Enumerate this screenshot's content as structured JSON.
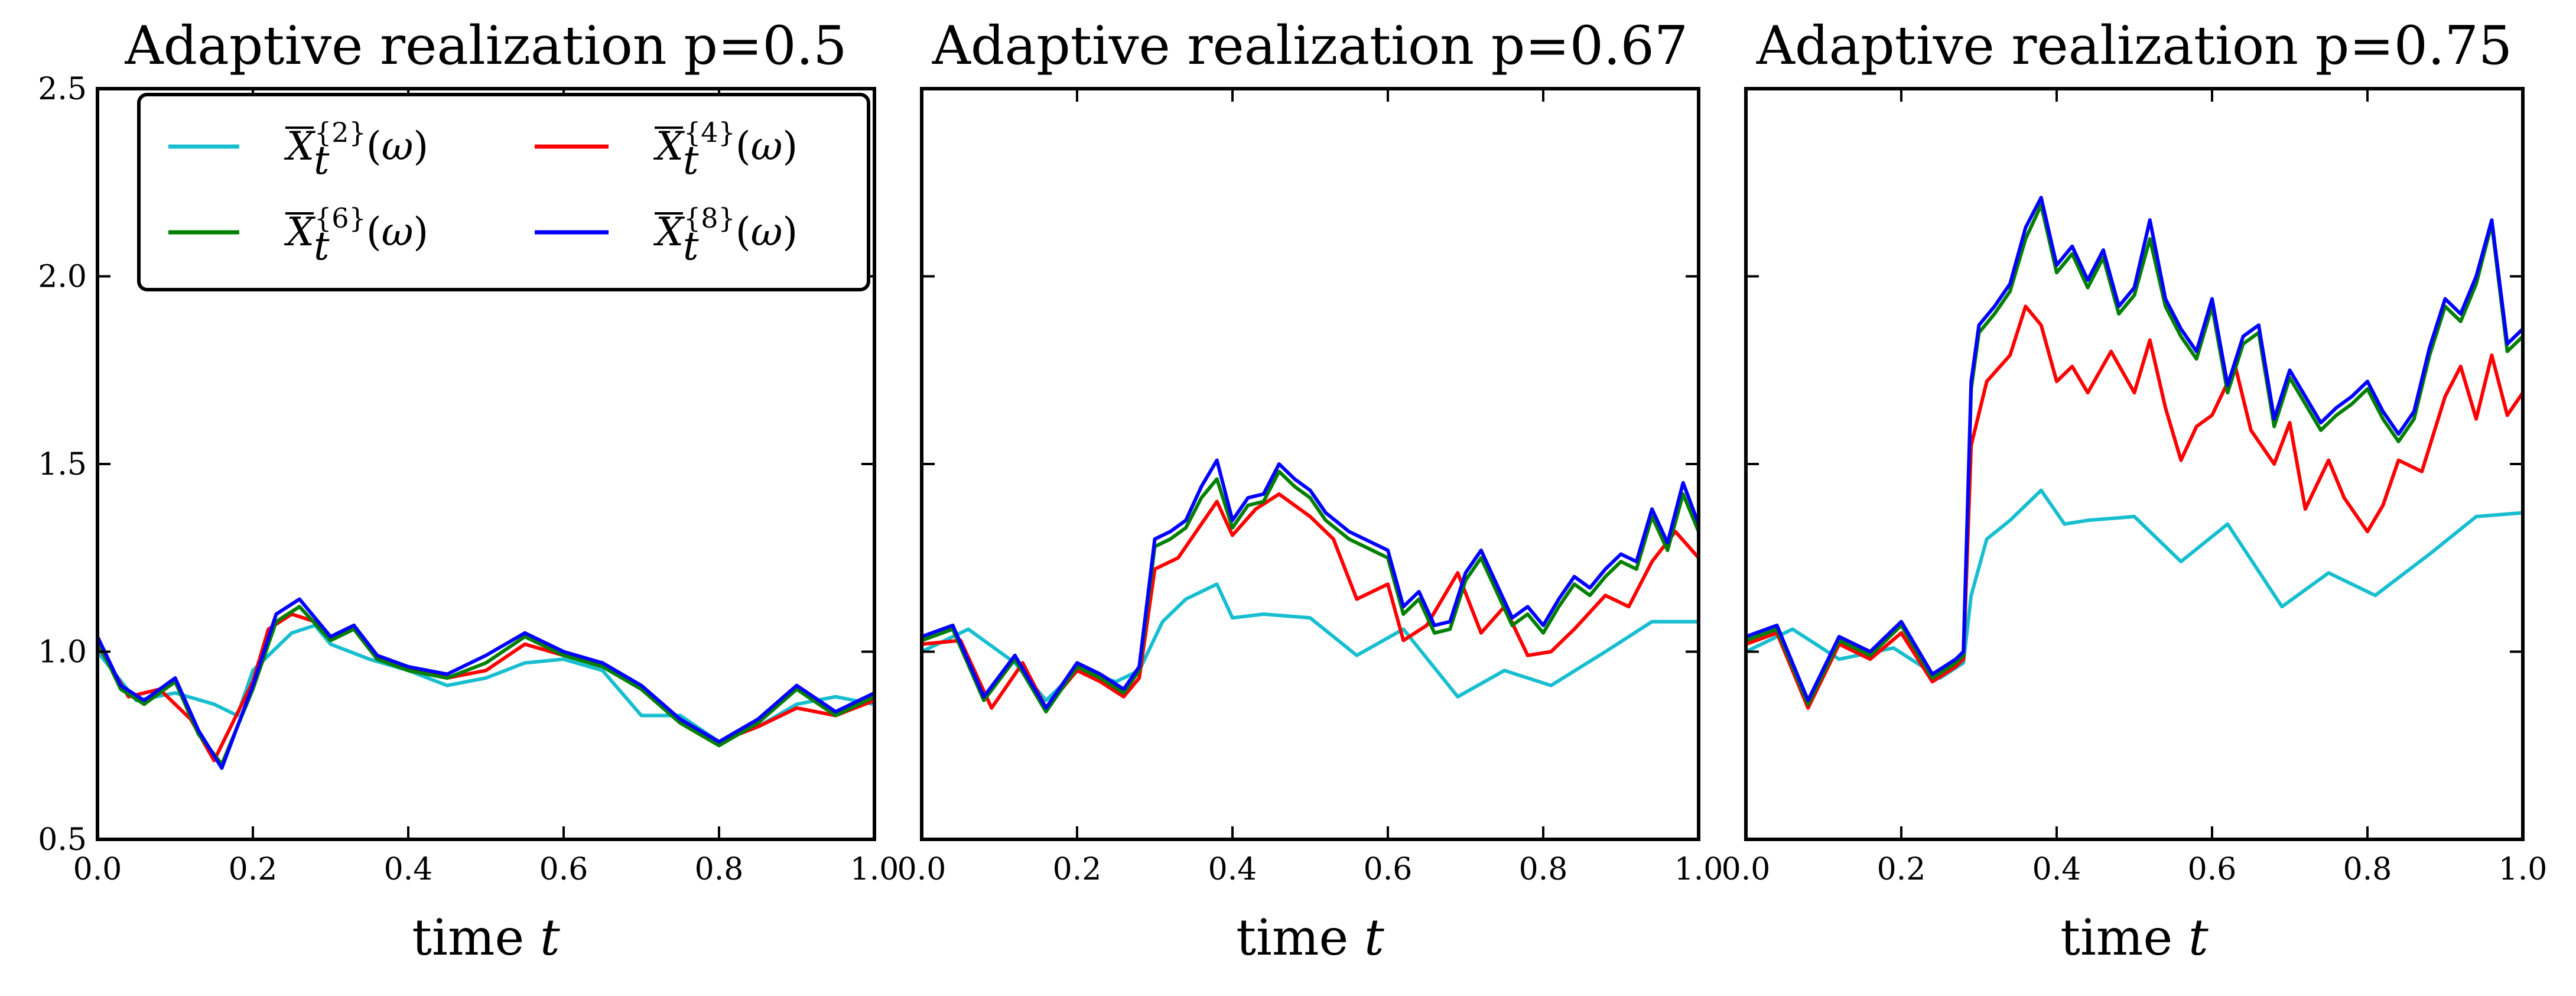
{
  "chart_data": [
    {
      "type": "line",
      "title": "Adaptive realization p=0.5",
      "xlabel": "time t",
      "ylabel": "",
      "xlim": [
        0.0,
        1.0
      ],
      "ylim": [
        0.5,
        2.5
      ],
      "xticks": [
        "0.0",
        "0.2",
        "0.4",
        "0.6",
        "0.8",
        "1.0"
      ],
      "yticks": [
        "0.5",
        "1.0",
        "1.5",
        "2.0",
        "2.5"
      ],
      "legend": {
        "position": "top-left",
        "columns": 2
      },
      "series": [
        {
          "name": "X̄_t^{2}(ω)",
          "color": "#17becf",
          "x": [
            0,
            0.05,
            0.1,
            0.15,
            0.18,
            0.2,
            0.25,
            0.28,
            0.3,
            0.35,
            0.4,
            0.45,
            0.5,
            0.55,
            0.6,
            0.65,
            0.7,
            0.75,
            0.8,
            0.85,
            0.9,
            0.95,
            1.0
          ],
          "y": [
            1.0,
            0.87,
            0.89,
            0.86,
            0.83,
            0.95,
            1.05,
            1.07,
            1.02,
            0.98,
            0.95,
            0.91,
            0.93,
            0.97,
            0.98,
            0.95,
            0.83,
            0.83,
            0.76,
            0.8,
            0.86,
            0.88,
            0.86
          ]
        },
        {
          "name": "X̄_t^{4}(ω)",
          "color": "#ff0000",
          "x": [
            0,
            0.04,
            0.08,
            0.12,
            0.15,
            0.2,
            0.22,
            0.25,
            0.28,
            0.3,
            0.33,
            0.36,
            0.4,
            0.45,
            0.5,
            0.55,
            0.6,
            0.65,
            0.7,
            0.75,
            0.8,
            0.85,
            0.9,
            0.95,
            1.0
          ],
          "y": [
            1.02,
            0.88,
            0.9,
            0.82,
            0.71,
            0.92,
            1.06,
            1.1,
            1.08,
            1.03,
            1.07,
            0.98,
            0.96,
            0.93,
            0.95,
            1.02,
            0.99,
            0.97,
            0.9,
            0.82,
            0.76,
            0.8,
            0.85,
            0.83,
            0.87
          ]
        },
        {
          "name": "X̄_t^{6}(ω)",
          "color": "#008000",
          "x": [
            0,
            0.03,
            0.06,
            0.1,
            0.13,
            0.16,
            0.2,
            0.23,
            0.26,
            0.3,
            0.33,
            0.36,
            0.4,
            0.45,
            0.5,
            0.55,
            0.6,
            0.65,
            0.7,
            0.75,
            0.8,
            0.85,
            0.9,
            0.95,
            1.0
          ],
          "y": [
            1.03,
            0.9,
            0.86,
            0.92,
            0.78,
            0.7,
            0.9,
            1.08,
            1.12,
            1.03,
            1.06,
            0.98,
            0.95,
            0.93,
            0.97,
            1.04,
            0.99,
            0.96,
            0.9,
            0.81,
            0.75,
            0.81,
            0.9,
            0.83,
            0.88
          ]
        },
        {
          "name": "X̄_t^{8}(ω)",
          "color": "#0000ff",
          "x": [
            0,
            0.03,
            0.06,
            0.1,
            0.13,
            0.16,
            0.2,
            0.23,
            0.26,
            0.3,
            0.33,
            0.36,
            0.4,
            0.45,
            0.5,
            0.55,
            0.6,
            0.65,
            0.7,
            0.75,
            0.8,
            0.85,
            0.9,
            0.95,
            1.0
          ],
          "y": [
            1.04,
            0.91,
            0.87,
            0.93,
            0.79,
            0.69,
            0.91,
            1.1,
            1.14,
            1.04,
            1.07,
            0.99,
            0.96,
            0.94,
            0.99,
            1.05,
            1.0,
            0.97,
            0.91,
            0.82,
            0.76,
            0.82,
            0.91,
            0.84,
            0.89
          ]
        }
      ]
    },
    {
      "type": "line",
      "title": "Adaptive realization p=0.67",
      "xlabel": "time t",
      "ylabel": "",
      "xlim": [
        0.0,
        1.0
      ],
      "ylim": [
        0.5,
        2.5
      ],
      "xticks": [
        "0.0",
        "0.2",
        "0.4",
        "0.6",
        "0.8",
        "1.0"
      ],
      "yticks": [
        "0.5",
        "1.0",
        "1.5",
        "2.0",
        "2.5"
      ],
      "series": [
        {
          "name": "X̄_t^{2}(ω)",
          "color": "#17becf",
          "x": [
            0,
            0.06,
            0.12,
            0.16,
            0.2,
            0.25,
            0.28,
            0.31,
            0.34,
            0.38,
            0.4,
            0.44,
            0.5,
            0.56,
            0.62,
            0.69,
            0.75,
            0.81,
            0.88,
            0.94,
            1.0
          ],
          "y": [
            1.0,
            1.06,
            0.97,
            0.87,
            0.95,
            0.92,
            0.95,
            1.08,
            1.14,
            1.18,
            1.09,
            1.1,
            1.09,
            0.99,
            1.06,
            0.88,
            0.95,
            0.91,
            1.0,
            1.08,
            1.08
          ]
        },
        {
          "name": "X̄_t^{4}(ω)",
          "color": "#ff0000",
          "x": [
            0,
            0.05,
            0.09,
            0.13,
            0.16,
            0.2,
            0.23,
            0.26,
            0.28,
            0.3,
            0.33,
            0.36,
            0.38,
            0.4,
            0.43,
            0.46,
            0.5,
            0.53,
            0.56,
            0.6,
            0.62,
            0.65,
            0.69,
            0.72,
            0.75,
            0.78,
            0.81,
            0.84,
            0.88,
            0.91,
            0.94,
            0.97,
            1.0
          ],
          "y": [
            1.02,
            1.03,
            0.85,
            0.97,
            0.85,
            0.95,
            0.92,
            0.88,
            0.93,
            1.22,
            1.25,
            1.34,
            1.4,
            1.31,
            1.38,
            1.42,
            1.36,
            1.3,
            1.14,
            1.18,
            1.03,
            1.07,
            1.21,
            1.05,
            1.12,
            0.99,
            1.0,
            1.06,
            1.15,
            1.12,
            1.24,
            1.32,
            1.25
          ]
        },
        {
          "name": "X̄_t^{6}(ω)",
          "color": "#008000",
          "x": [
            0,
            0.04,
            0.08,
            0.12,
            0.16,
            0.2,
            0.23,
            0.26,
            0.28,
            0.3,
            0.32,
            0.34,
            0.36,
            0.38,
            0.4,
            0.42,
            0.44,
            0.46,
            0.48,
            0.5,
            0.52,
            0.55,
            0.58,
            0.6,
            0.62,
            0.64,
            0.66,
            0.68,
            0.7,
            0.72,
            0.74,
            0.76,
            0.78,
            0.8,
            0.82,
            0.84,
            0.86,
            0.88,
            0.9,
            0.92,
            0.94,
            0.96,
            0.98,
            1.0
          ],
          "y": [
            1.03,
            1.06,
            0.87,
            0.98,
            0.84,
            0.96,
            0.93,
            0.89,
            0.95,
            1.28,
            1.3,
            1.33,
            1.41,
            1.46,
            1.33,
            1.39,
            1.4,
            1.48,
            1.44,
            1.41,
            1.35,
            1.3,
            1.27,
            1.25,
            1.1,
            1.14,
            1.05,
            1.06,
            1.19,
            1.25,
            1.16,
            1.07,
            1.1,
            1.05,
            1.12,
            1.18,
            1.15,
            1.2,
            1.24,
            1.22,
            1.36,
            1.27,
            1.42,
            1.32
          ]
        },
        {
          "name": "X̄_t^{8}(ω)",
          "color": "#0000ff",
          "x": [
            0,
            0.04,
            0.08,
            0.12,
            0.16,
            0.2,
            0.23,
            0.26,
            0.28,
            0.3,
            0.32,
            0.34,
            0.36,
            0.38,
            0.4,
            0.42,
            0.44,
            0.46,
            0.48,
            0.5,
            0.52,
            0.55,
            0.58,
            0.6,
            0.62,
            0.64,
            0.66,
            0.68,
            0.7,
            0.72,
            0.74,
            0.76,
            0.78,
            0.8,
            0.82,
            0.84,
            0.86,
            0.88,
            0.9,
            0.92,
            0.94,
            0.96,
            0.98,
            1.0
          ],
          "y": [
            1.04,
            1.07,
            0.88,
            0.99,
            0.85,
            0.97,
            0.94,
            0.9,
            0.96,
            1.3,
            1.32,
            1.35,
            1.44,
            1.51,
            1.35,
            1.41,
            1.42,
            1.5,
            1.46,
            1.43,
            1.37,
            1.32,
            1.29,
            1.27,
            1.12,
            1.16,
            1.07,
            1.08,
            1.21,
            1.27,
            1.18,
            1.09,
            1.12,
            1.07,
            1.14,
            1.2,
            1.17,
            1.22,
            1.26,
            1.24,
            1.38,
            1.29,
            1.45,
            1.34
          ]
        }
      ]
    },
    {
      "type": "line",
      "title": "Adaptive realization p=0.75",
      "xlabel": "time t",
      "ylabel": "",
      "xlim": [
        0.0,
        1.0
      ],
      "ylim": [
        0.5,
        2.5
      ],
      "xticks": [
        "0.0",
        "0.2",
        "0.4",
        "0.6",
        "0.8",
        "1.0"
      ],
      "yticks": [
        "0.5",
        "1.0",
        "1.5",
        "2.0",
        "2.5"
      ],
      "series": [
        {
          "name": "X̄_t^{2}(ω)",
          "color": "#17becf",
          "x": [
            0,
            0.06,
            0.12,
            0.19,
            0.25,
            0.28,
            0.29,
            0.31,
            0.34,
            0.38,
            0.41,
            0.44,
            0.5,
            0.56,
            0.62,
            0.69,
            0.75,
            0.81,
            0.88,
            0.94,
            1.0
          ],
          "y": [
            1.0,
            1.06,
            0.98,
            1.01,
            0.93,
            0.97,
            1.15,
            1.3,
            1.35,
            1.43,
            1.34,
            1.35,
            1.36,
            1.24,
            1.34,
            1.12,
            1.21,
            1.15,
            1.26,
            1.36,
            1.37
          ]
        },
        {
          "name": "X̄_t^{4}(ω)",
          "color": "#ff0000",
          "x": [
            0,
            0.04,
            0.08,
            0.12,
            0.16,
            0.2,
            0.24,
            0.27,
            0.28,
            0.29,
            0.31,
            0.34,
            0.36,
            0.38,
            0.4,
            0.42,
            0.44,
            0.47,
            0.5,
            0.52,
            0.54,
            0.56,
            0.58,
            0.6,
            0.63,
            0.65,
            0.68,
            0.7,
            0.72,
            0.75,
            0.77,
            0.8,
            0.82,
            0.84,
            0.87,
            0.9,
            0.92,
            0.94,
            0.96,
            0.98,
            1.0
          ],
          "y": [
            1.02,
            1.05,
            0.85,
            1.02,
            0.98,
            1.05,
            0.92,
            0.96,
            0.98,
            1.55,
            1.72,
            1.79,
            1.92,
            1.87,
            1.72,
            1.76,
            1.69,
            1.8,
            1.69,
            1.83,
            1.65,
            1.51,
            1.6,
            1.63,
            1.76,
            1.59,
            1.5,
            1.61,
            1.38,
            1.51,
            1.41,
            1.32,
            1.39,
            1.51,
            1.48,
            1.68,
            1.76,
            1.62,
            1.79,
            1.63,
            1.69
          ]
        },
        {
          "name": "X̄_t^{6}(ω)",
          "color": "#008000",
          "x": [
            0,
            0.04,
            0.08,
            0.12,
            0.16,
            0.2,
            0.24,
            0.27,
            0.28,
            0.29,
            0.3,
            0.32,
            0.34,
            0.36,
            0.38,
            0.4,
            0.42,
            0.44,
            0.46,
            0.48,
            0.5,
            0.52,
            0.54,
            0.56,
            0.58,
            0.6,
            0.62,
            0.64,
            0.66,
            0.68,
            0.7,
            0.72,
            0.74,
            0.76,
            0.78,
            0.8,
            0.82,
            0.84,
            0.86,
            0.88,
            0.9,
            0.92,
            0.94,
            0.96,
            0.98,
            1.0
          ],
          "y": [
            1.03,
            1.06,
            0.86,
            1.03,
            0.99,
            1.07,
            0.93,
            0.97,
            0.99,
            1.7,
            1.85,
            1.9,
            1.96,
            2.1,
            2.19,
            2.01,
            2.06,
            1.97,
            2.05,
            1.9,
            1.95,
            2.1,
            1.92,
            1.84,
            1.78,
            1.92,
            1.69,
            1.82,
            1.85,
            1.6,
            1.73,
            1.66,
            1.59,
            1.63,
            1.66,
            1.7,
            1.62,
            1.56,
            1.62,
            1.79,
            1.92,
            1.88,
            1.98,
            2.14,
            1.8,
            1.84
          ]
        },
        {
          "name": "X̄_t^{8}(ω)",
          "color": "#0000ff",
          "x": [
            0,
            0.04,
            0.08,
            0.12,
            0.16,
            0.2,
            0.24,
            0.27,
            0.28,
            0.29,
            0.3,
            0.32,
            0.34,
            0.36,
            0.38,
            0.4,
            0.42,
            0.44,
            0.46,
            0.48,
            0.5,
            0.52,
            0.54,
            0.56,
            0.58,
            0.6,
            0.62,
            0.64,
            0.66,
            0.68,
            0.7,
            0.72,
            0.74,
            0.76,
            0.78,
            0.8,
            0.82,
            0.84,
            0.86,
            0.88,
            0.9,
            0.92,
            0.94,
            0.96,
            0.98,
            1.0
          ],
          "y": [
            1.04,
            1.07,
            0.87,
            1.04,
            1.0,
            1.08,
            0.94,
            0.98,
            1.0,
            1.72,
            1.87,
            1.92,
            1.98,
            2.13,
            2.21,
            2.03,
            2.08,
            1.99,
            2.07,
            1.92,
            1.97,
            2.15,
            1.94,
            1.86,
            1.8,
            1.94,
            1.71,
            1.84,
            1.87,
            1.62,
            1.75,
            1.68,
            1.61,
            1.65,
            1.68,
            1.72,
            1.64,
            1.58,
            1.64,
            1.81,
            1.94,
            1.9,
            2.0,
            2.15,
            1.82,
            1.86
          ]
        }
      ]
    }
  ]
}
